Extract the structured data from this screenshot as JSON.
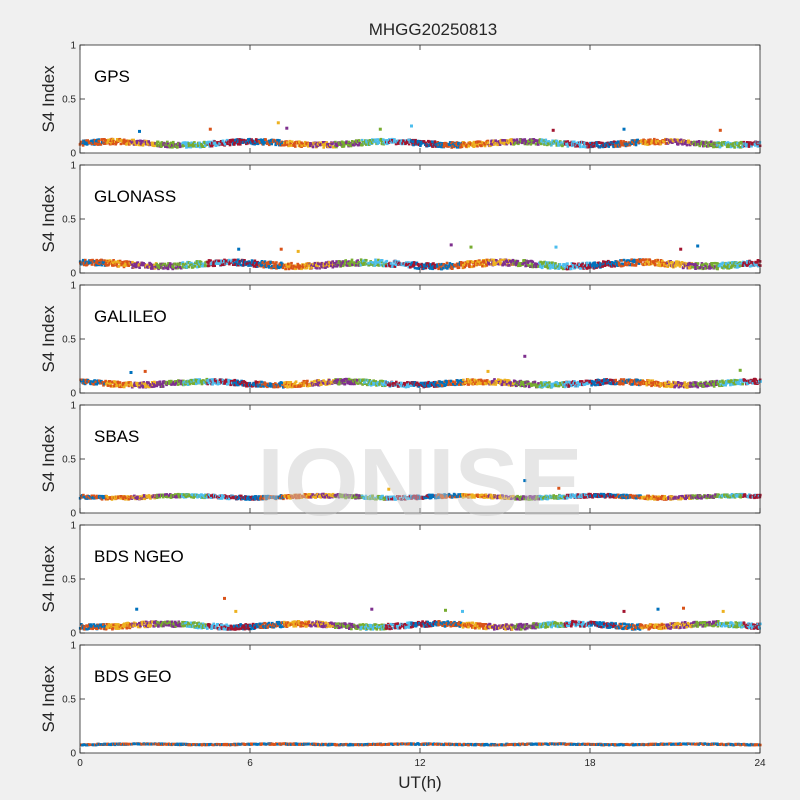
{
  "figure": {
    "title": "MHGG20250813",
    "watermark": "IONISE",
    "xlabel": "UT(h)",
    "background": "#f0f0f0"
  },
  "chart_data": [
    {
      "type": "scatter",
      "label": "GPS",
      "ylabel": "S4 Index",
      "xlim": [
        0,
        24
      ],
      "ylim": [
        0,
        1
      ],
      "xticks": [
        "0",
        "6",
        "12",
        "18",
        "24"
      ],
      "yticks": [
        "0",
        "0.5",
        "1"
      ],
      "series_colors": [
        "#0072BD",
        "#D95319",
        "#EDB120",
        "#7E2F8E",
        "#77AC30",
        "#4DBEEE",
        "#A2142F"
      ],
      "baseline": 0.09,
      "spread": 0.03,
      "spikes": [
        [
          2.1,
          0.2
        ],
        [
          4.6,
          0.22
        ],
        [
          7.0,
          0.28
        ],
        [
          7.3,
          0.23
        ],
        [
          10.6,
          0.22
        ],
        [
          11.7,
          0.25
        ],
        [
          16.7,
          0.21
        ],
        [
          19.2,
          0.22
        ],
        [
          22.6,
          0.21
        ]
      ]
    },
    {
      "type": "scatter",
      "label": "GLONASS",
      "ylabel": "S4 Index",
      "xlim": [
        0,
        24
      ],
      "ylim": [
        0,
        1
      ],
      "xticks": [
        "0",
        "6",
        "12",
        "18",
        "24"
      ],
      "yticks": [
        "0",
        "0.5",
        "1"
      ],
      "series_colors": [
        "#0072BD",
        "#D95319",
        "#EDB120",
        "#7E2F8E",
        "#77AC30",
        "#4DBEEE",
        "#A2142F"
      ],
      "baseline": 0.08,
      "spread": 0.035,
      "spikes": [
        [
          5.6,
          0.22
        ],
        [
          7.1,
          0.22
        ],
        [
          7.7,
          0.2
        ],
        [
          13.1,
          0.26
        ],
        [
          13.8,
          0.24
        ],
        [
          16.8,
          0.24
        ],
        [
          21.2,
          0.22
        ],
        [
          21.8,
          0.25
        ]
      ]
    },
    {
      "type": "scatter",
      "label": "GALILEO",
      "ylabel": "S4 Index",
      "xlim": [
        0,
        24
      ],
      "ylim": [
        0,
        1
      ],
      "xticks": [
        "0",
        "6",
        "12",
        "18",
        "24"
      ],
      "yticks": [
        "0",
        "0.5",
        "1"
      ],
      "series_colors": [
        "#0072BD",
        "#D95319",
        "#EDB120",
        "#7E2F8E",
        "#77AC30",
        "#4DBEEE",
        "#A2142F"
      ],
      "baseline": 0.09,
      "spread": 0.03,
      "spikes": [
        [
          1.8,
          0.19
        ],
        [
          2.3,
          0.2
        ],
        [
          14.4,
          0.2
        ],
        [
          15.7,
          0.34
        ],
        [
          23.3,
          0.21
        ]
      ]
    },
    {
      "type": "scatter",
      "label": "SBAS",
      "ylabel": "S4 Index",
      "xlim": [
        0,
        24
      ],
      "ylim": [
        0,
        1
      ],
      "xticks": [
        "0",
        "6",
        "12",
        "18",
        "24"
      ],
      "yticks": [
        "0",
        "0.5",
        "1"
      ],
      "series_colors": [
        "#0072BD",
        "#D95319",
        "#EDB120",
        "#7E2F8E",
        "#77AC30",
        "#4DBEEE",
        "#A2142F"
      ],
      "baseline": 0.15,
      "spread": 0.02,
      "spikes": [
        [
          15.7,
          0.3
        ],
        [
          16.9,
          0.23
        ],
        [
          10.9,
          0.22
        ]
      ]
    },
    {
      "type": "scatter",
      "label": "BDS NGEO",
      "ylabel": "S4 Index",
      "xlim": [
        0,
        24
      ],
      "ylim": [
        0,
        1
      ],
      "xticks": [
        "0",
        "6",
        "12",
        "18",
        "24"
      ],
      "yticks": [
        "0",
        "0.5",
        "1"
      ],
      "series_colors": [
        "#0072BD",
        "#D95319",
        "#EDB120",
        "#7E2F8E",
        "#77AC30",
        "#4DBEEE",
        "#A2142F"
      ],
      "baseline": 0.07,
      "spread": 0.03,
      "spikes": [
        [
          2.0,
          0.22
        ],
        [
          5.1,
          0.32
        ],
        [
          5.5,
          0.2
        ],
        [
          10.3,
          0.22
        ],
        [
          12.9,
          0.21
        ],
        [
          13.5,
          0.2
        ],
        [
          19.2,
          0.2
        ],
        [
          20.4,
          0.22
        ],
        [
          21.3,
          0.23
        ],
        [
          22.7,
          0.2
        ]
      ]
    },
    {
      "type": "scatter",
      "label": "BDS GEO",
      "ylabel": "S4 Index",
      "xlim": [
        0,
        24
      ],
      "ylim": [
        0,
        1
      ],
      "xticks": [
        "0",
        "6",
        "12",
        "18",
        "24"
      ],
      "yticks": [
        "0",
        "0.5",
        "1"
      ],
      "series_colors": [
        "#D95319",
        "#0072BD"
      ],
      "baseline": 0.08,
      "spread": 0.006,
      "spikes": []
    }
  ]
}
